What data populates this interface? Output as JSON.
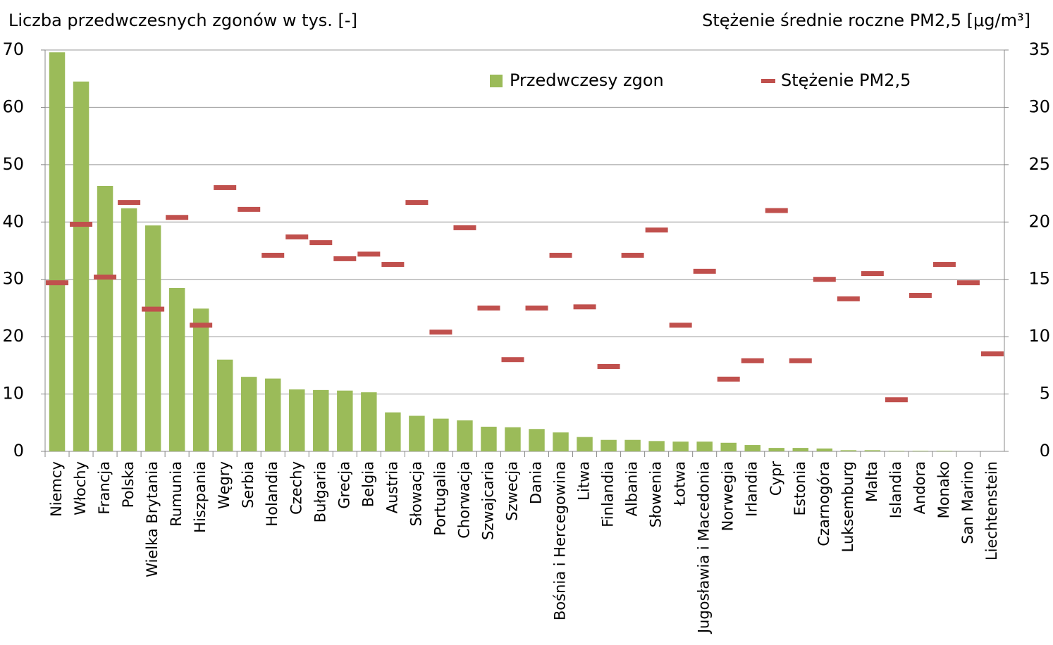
{
  "chart_data": {
    "type": "bar",
    "y_label": "Liczba przedwczesnych zgonów w tys. [-]",
    "y2_label": "Stężenie średnie roczne PM2,5 [μg/m³]",
    "categories": [
      "Niemcy",
      "Włochy",
      "Francja",
      "Polska",
      "Wielka Brytania",
      "Rumunia",
      "Hiszpania",
      "Węgry",
      "Serbia",
      "Holandia",
      "Czechy",
      "Bułgaria",
      "Grecja",
      "Belgia",
      "Austria",
      "Słowacja",
      "Portugalia",
      "Chorwacja",
      "Szwajcaria",
      "Szwecja",
      "Dania",
      "Bośnia i Hercegowina",
      "Litwa",
      "Finlandia",
      "Albania",
      "Słowenia",
      "Łotwa",
      "Jugosławia i Macedonia",
      "Norwegia",
      "Irlandia",
      "Cypr",
      "Estonia",
      "Czarnogóra",
      "Luksemburg",
      "Malta",
      "Islandia",
      "Andora",
      "Monako",
      "San Marino",
      "Liechtenstein"
    ],
    "series": [
      {
        "name": "Przedwczesy zgon",
        "type": "bar",
        "color": "#9bbb59",
        "values": [
          69.6,
          64.5,
          46.3,
          42.4,
          39.4,
          28.5,
          24.9,
          16.0,
          13.0,
          12.7,
          10.8,
          10.7,
          10.6,
          10.3,
          6.8,
          6.2,
          5.7,
          5.4,
          4.3,
          4.2,
          3.9,
          3.3,
          2.5,
          2.0,
          2.0,
          1.8,
          1.7,
          1.7,
          1.5,
          1.1,
          0.6,
          0.6,
          0.5,
          0.2,
          0.2,
          0.1,
          0.1,
          0.1,
          0,
          0
        ]
      },
      {
        "name": "Stężenie PM2,5",
        "type": "marker",
        "axis": "y2",
        "color": "#c0504d",
        "values": [
          14.7,
          19.8,
          15.2,
          21.7,
          12.4,
          20.4,
          11.0,
          23.0,
          21.1,
          17.1,
          18.7,
          18.2,
          16.8,
          17.2,
          16.3,
          21.7,
          10.4,
          19.5,
          12.5,
          8.0,
          12.5,
          17.1,
          12.6,
          7.4,
          17.1,
          19.3,
          11.0,
          15.7,
          6.3,
          7.9,
          21.0,
          7.9,
          15.0,
          13.3,
          15.5,
          4.5,
          13.6,
          16.3,
          14.7,
          8.5
        ]
      }
    ],
    "ylim": [
      0,
      70
    ],
    "yticks": [
      0,
      10,
      20,
      30,
      40,
      50,
      60,
      70
    ],
    "y2lim": [
      0,
      35
    ],
    "y2ticks": [
      0,
      5,
      10,
      15,
      20,
      25,
      30,
      35
    ],
    "grid": true,
    "legend": "top"
  }
}
